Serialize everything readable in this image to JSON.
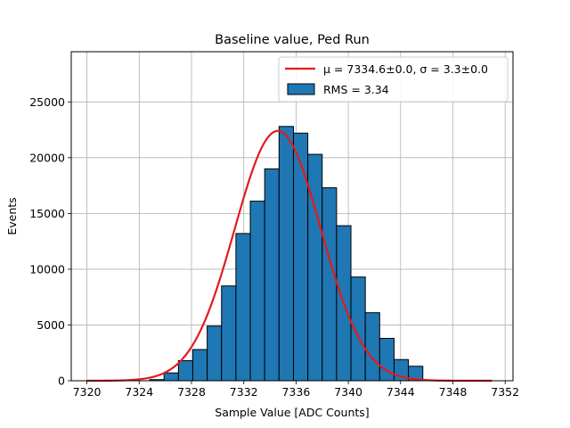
{
  "chart_data": {
    "type": "bar",
    "title": "Baseline value, Ped Run",
    "xlabel": "Sample Value [ADC Counts]",
    "ylabel": "Events",
    "xlim": [
      7318.8,
      7352.6
    ],
    "ylim": [
      0,
      29500
    ],
    "xticks": [
      7320,
      7324,
      7328,
      7332,
      7336,
      7340,
      7344,
      7348,
      7352
    ],
    "yticks": [
      0,
      5000,
      10000,
      15000,
      20000,
      25000
    ],
    "grid": true,
    "legend_position": "top-right",
    "histogram": {
      "name": "RMS = 3.34",
      "color": "#1f77b4",
      "bin_width": 1.1,
      "bin_starts": [
        7324.8,
        7325.9,
        7327.0,
        7328.1,
        7329.2,
        7330.3,
        7331.4,
        7332.5,
        7333.6,
        7334.7,
        7335.8,
        7336.9,
        7338.0,
        7339.1,
        7340.2,
        7341.3,
        7342.4,
        7343.5,
        7344.6
      ],
      "counts": [
        100,
        700,
        1800,
        2800,
        4900,
        8500,
        13200,
        16100,
        19000,
        22800,
        22200,
        20300,
        17300,
        13900,
        9300,
        6100,
        3800,
        1900,
        1300
      ]
    },
    "fit": {
      "name": "μ = 7334.6±0.0, σ = 3.3±0.0",
      "color": "#e41a1c",
      "mean": 7334.6,
      "sigma": 3.3,
      "amplitude": 22400,
      "x_range": [
        7320,
        7351
      ]
    }
  }
}
